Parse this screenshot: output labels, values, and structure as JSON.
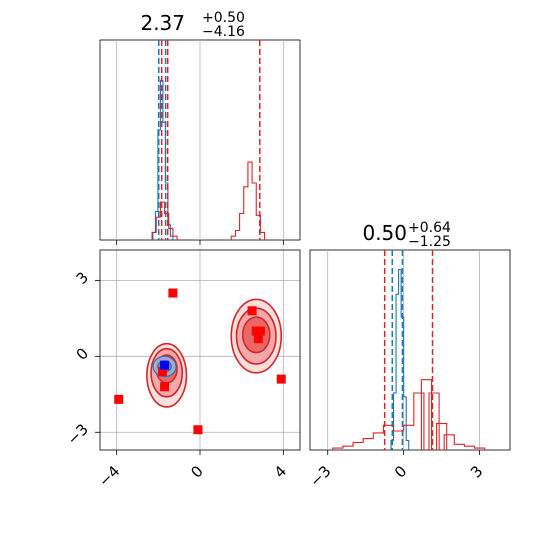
{
  "chart_data": {
    "type": "corner",
    "panels": [
      {
        "id": "top-left",
        "type": "histogram",
        "title": {
          "value": "2.37",
          "plus": "+0.50",
          "minus": "−4.16"
        },
        "xlim": [
          -4.8,
          4.8
        ],
        "xticks": [
          -4,
          0,
          4
        ],
        "grid": true,
        "series": [
          {
            "color": "#1f77b4",
            "centers": [
              -2.2,
              -2.08,
              -1.96,
              -1.84,
              -1.72,
              -1.6,
              -1.48,
              -1.36
            ],
            "heights": [
              0.04,
              0.15,
              0.58,
              0.84,
              0.62,
              0.3,
              0.08,
              0.02
            ]
          },
          {
            "color": "#d62728",
            "centers": [
              -2.2,
              -2.0,
              -1.8,
              -1.6,
              -1.4,
              -1.2,
              1.6,
              1.8,
              2.0,
              2.2,
              2.4,
              2.6,
              2.8,
              3.0
            ],
            "heights": [
              0.04,
              0.12,
              0.2,
              0.14,
              0.06,
              0.02,
              0.02,
              0.05,
              0.14,
              0.28,
              0.41,
              0.3,
              0.13,
              0.04
            ]
          }
        ],
        "vlines": [
          {
            "x": -1.98,
            "color": "#1f77b4"
          },
          {
            "x": -1.65,
            "color": "#1f77b4"
          },
          {
            "x": -1.84,
            "color": "#d62728"
          },
          {
            "x": -1.55,
            "color": "#d62728"
          },
          {
            "x": 2.87,
            "color": "#d62728"
          }
        ]
      },
      {
        "id": "bottom-left",
        "type": "scatter-contour",
        "xlim": [
          -4.8,
          4.8
        ],
        "ylim": [
          -3.7,
          4.2
        ],
        "xticks": [
          -4,
          0,
          4
        ],
        "yticks": [
          -3,
          0,
          3
        ],
        "grid": true,
        "red_points": [
          {
            "x": -1.3,
            "y": 2.5
          },
          {
            "x": -3.9,
            "y": -1.7
          },
          {
            "x": -0.1,
            "y": -2.9
          },
          {
            "x": 3.9,
            "y": -0.9
          },
          {
            "x": 2.5,
            "y": 1.8
          },
          {
            "x": 2.7,
            "y": 1.0
          },
          {
            "x": 2.9,
            "y": 1.0
          },
          {
            "x": 2.8,
            "y": 0.7
          },
          {
            "x": -1.7,
            "y": -1.2
          },
          {
            "x": -1.8,
            "y": -0.6
          }
        ],
        "blue_points": [
          {
            "x": -1.7,
            "y": -0.35
          }
        ],
        "contours": [
          {
            "cx": -1.6,
            "cy": -0.75,
            "rx": 0.95,
            "ry": 1.25,
            "fill": "#fbdede"
          },
          {
            "cx": -1.6,
            "cy": -0.65,
            "rx": 0.75,
            "ry": 0.95,
            "fill": "#f3a9a9"
          },
          {
            "cx": -1.6,
            "cy": -0.5,
            "rx": 0.5,
            "ry": 0.55,
            "fill": "#ea6767"
          },
          {
            "cx": 2.7,
            "cy": 0.8,
            "rx": 1.2,
            "ry": 1.45,
            "fill": "#fbdede"
          },
          {
            "cx": 2.7,
            "cy": 0.8,
            "rx": 0.95,
            "ry": 1.1,
            "fill": "#f3a9a9"
          },
          {
            "cx": 2.7,
            "cy": 0.85,
            "rx": 0.65,
            "ry": 0.7,
            "fill": "#ea6767"
          }
        ],
        "blue_contours": [
          {
            "cx": -1.7,
            "cy": -0.4,
            "rx": 0.55,
            "ry": 0.4
          },
          {
            "cx": -1.7,
            "cy": -0.4,
            "rx": 0.32,
            "ry": 0.22
          }
        ]
      },
      {
        "id": "bottom-right",
        "type": "histogram",
        "title": {
          "value": "0.50",
          "plus": "+0.64",
          "minus": "−1.25"
        },
        "xlim": [
          -3.7,
          4.2
        ],
        "xticks": [
          -3,
          0,
          3
        ],
        "grid": true,
        "series": [
          {
            "color": "#1f77b4",
            "centers": [
              -0.45,
              -0.35,
              -0.25,
              -0.15,
              -0.05,
              0.05,
              0.15
            ],
            "heights": [
              0.05,
              0.3,
              0.82,
              0.95,
              0.7,
              0.28,
              0.05
            ]
          },
          {
            "color": "#d62728",
            "centers": [
              -2.6,
              -2.2,
              -1.8,
              -1.4,
              -1.0,
              -0.6,
              -0.2,
              0.2,
              0.6,
              0.9,
              1.2,
              1.5,
              1.8,
              2.2,
              2.6,
              3.0
            ],
            "heights": [
              0.01,
              0.02,
              0.04,
              0.06,
              0.09,
              0.13,
              0.1,
              0.13,
              0.3,
              0.37,
              0.3,
              0.14,
              0.08,
              0.03,
              0.02,
              0.01
            ]
          }
        ],
        "vlines": [
          {
            "x": -0.75,
            "color": "#d62728"
          },
          {
            "x": -0.45,
            "color": "#1f77b4"
          },
          {
            "x": -0.05,
            "color": "#1f77b4"
          },
          {
            "x": 1.14,
            "color": "#d62728"
          }
        ]
      }
    ]
  }
}
